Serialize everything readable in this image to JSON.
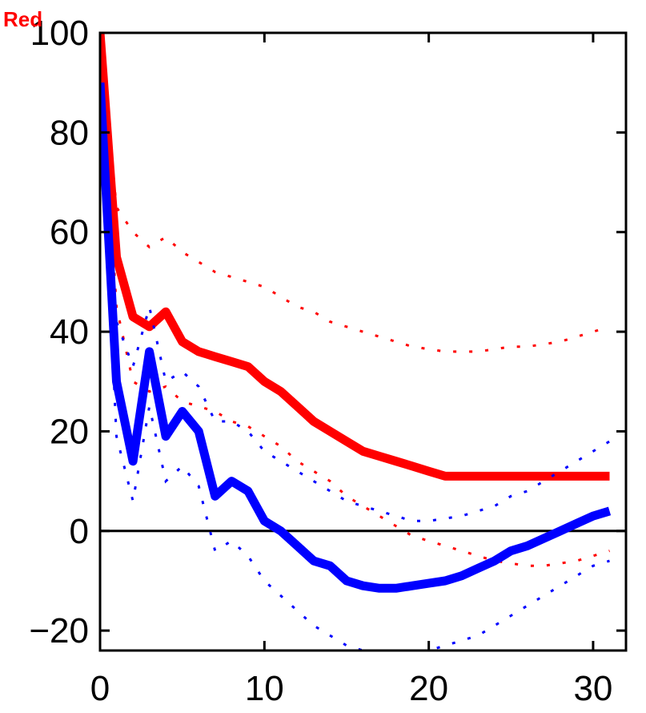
{
  "chart_data": {
    "type": "line",
    "title": "",
    "xlabel": "",
    "ylabel": "",
    "xlim": [
      0,
      32
    ],
    "ylim": [
      -24,
      100
    ],
    "xticks": [
      0,
      10,
      20,
      30
    ],
    "yticks": [
      -20,
      0,
      20,
      40,
      60,
      80,
      100
    ],
    "xtick_labels": [
      "0",
      "10",
      "20",
      "30"
    ],
    "ytick_labels": [
      "−20",
      "0",
      "20",
      "40",
      "60",
      "80",
      "100"
    ],
    "zero_line": true,
    "grid": false,
    "legend": {
      "position": "top-left",
      "entries": [
        "Red"
      ]
    },
    "x": [
      0,
      1,
      2,
      3,
      4,
      5,
      6,
      7,
      8,
      9,
      10,
      11,
      12,
      13,
      14,
      15,
      16,
      17,
      18,
      19,
      20,
      21,
      22,
      23,
      24,
      25,
      26,
      27,
      28,
      29,
      30,
      31
    ],
    "series": [
      {
        "name": "Red",
        "color": "#ff0000",
        "values": [
          100,
          55,
          43,
          41,
          44,
          38,
          36,
          35,
          34,
          33,
          30,
          28,
          25,
          22,
          20,
          18,
          16,
          15,
          14,
          13,
          12,
          11,
          11,
          11,
          11,
          11,
          11,
          11,
          11,
          11,
          11,
          11
        ],
        "upper": [
          100,
          65,
          60,
          57,
          59,
          56,
          54,
          52,
          51,
          50,
          49,
          47,
          45,
          44,
          42,
          41,
          40,
          39,
          38,
          37,
          36.5,
          36,
          36,
          36,
          36.5,
          37,
          37,
          37.5,
          38,
          39,
          40,
          41
        ],
        "lower": [
          100,
          45,
          30,
          28,
          29,
          26,
          25,
          24,
          22,
          21,
          19,
          17,
          14,
          12,
          10,
          7,
          5,
          3,
          1,
          -1,
          -2,
          -3,
          -4,
          -5,
          -6,
          -6.5,
          -7,
          -7,
          -6.5,
          -6,
          -5,
          -4
        ]
      },
      {
        "name": "",
        "color": "#0000ff",
        "values": [
          90,
          30,
          14,
          36,
          19,
          24,
          20,
          7,
          10,
          8,
          2,
          0,
          -3,
          -6,
          -7,
          -10,
          -11,
          -11.5,
          -11.5,
          -11,
          -10.5,
          -10,
          -9,
          -7.5,
          -6,
          -4,
          -3,
          -1.5,
          0,
          1.5,
          3,
          4
        ],
        "upper": [
          90,
          42,
          33,
          45,
          30,
          32,
          29,
          22,
          22,
          20,
          16,
          14,
          12,
          10,
          8,
          6,
          5,
          4,
          3,
          2,
          2,
          2.5,
          3,
          4,
          5,
          7,
          8,
          10,
          12,
          14,
          16,
          18
        ],
        "lower": [
          90,
          19,
          6,
          25,
          10,
          13,
          9,
          -4,
          -2,
          -5,
          -10,
          -13,
          -16,
          -19,
          -21,
          -23,
          -24,
          -25,
          -25,
          -24.5,
          -24,
          -23,
          -22,
          -21,
          -19,
          -17,
          -15,
          -13,
          -11,
          -9,
          -7,
          -6
        ]
      }
    ]
  }
}
